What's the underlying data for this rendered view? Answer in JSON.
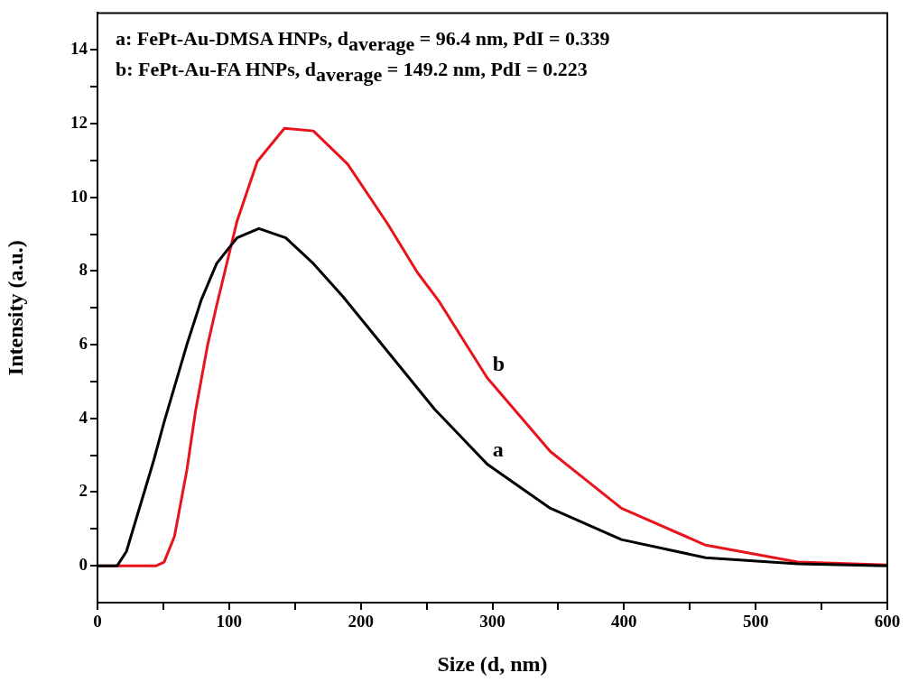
{
  "chart_data": {
    "type": "line",
    "xlabel": "Size (d, nm)",
    "ylabel": "Intensity (a.u.)",
    "xlim": [
      0,
      600
    ],
    "ylim": [
      -1,
      15
    ],
    "xticks": [
      0,
      {
        "value": 50,
        "label": null
      },
      100,
      {
        "value": 150,
        "label": null
      },
      200,
      {
        "value": 250,
        "label": null
      },
      300,
      {
        "value": 350,
        "label": null
      },
      400,
      {
        "value": 450,
        "label": null
      },
      500,
      {
        "value": 550,
        "label": null
      },
      600
    ],
    "yticks": [
      0,
      {
        "value": 1,
        "label": null
      },
      2,
      {
        "value": 3,
        "label": null
      },
      4,
      {
        "value": 5,
        "label": null
      },
      6,
      {
        "value": 7,
        "label": null
      },
      8,
      {
        "value": 9,
        "label": null
      },
      10,
      {
        "value": 11,
        "label": null
      },
      12,
      {
        "value": 13,
        "label": null
      },
      14
    ],
    "grid": false,
    "legend": false,
    "marker": "none",
    "line_style": "solid",
    "series": [
      {
        "color": "#000000",
        "x": [
          0,
          15,
          22,
          42.5,
          50.6,
          67.9,
          79,
          90.5,
          106,
          122.6,
          143,
          164,
          186.6,
          256,
          296,
          344,
          398,
          462,
          532,
          600
        ],
        "values": [
          0,
          0,
          0.39,
          2.83,
          3.9,
          6.0,
          7.23,
          8.2,
          8.9,
          9.15,
          8.9,
          8.2,
          7.3,
          4.25,
          2.76,
          1.56,
          0.71,
          0.22,
          0.05,
          0
        ]
      },
      {
        "color": "#e8141c",
        "x": [
          0,
          44.6,
          50.6,
          58.5,
          67.9,
          74.5,
          83.7,
          90.5,
          106,
          121.4,
          142,
          164,
          190,
          220,
          243,
          259,
          296,
          344,
          398,
          462,
          532,
          600
        ],
        "values": [
          0,
          0,
          0.1,
          0.8,
          2.6,
          4.2,
          6.0,
          7.06,
          9.35,
          10.97,
          11.87,
          11.8,
          10.9,
          9.3,
          7.96,
          7.2,
          5.1,
          3.1,
          1.56,
          0.56,
          0.1,
          0.02
        ]
      }
    ],
    "annotations": [
      "a: FePt-Au-DMSA HNPs, d$_{average}$ = 96.4 nm, PdI = 0.339",
      "b: FePt-Au-FA HNPs, d$_{average}$ = 149.2 nm, PdI = 0.223",
      {
        "text": "a",
        "x": 296,
        "y": 2.76
      },
      {
        "text": "b",
        "x": 296,
        "y": 5.1
      }
    ]
  }
}
